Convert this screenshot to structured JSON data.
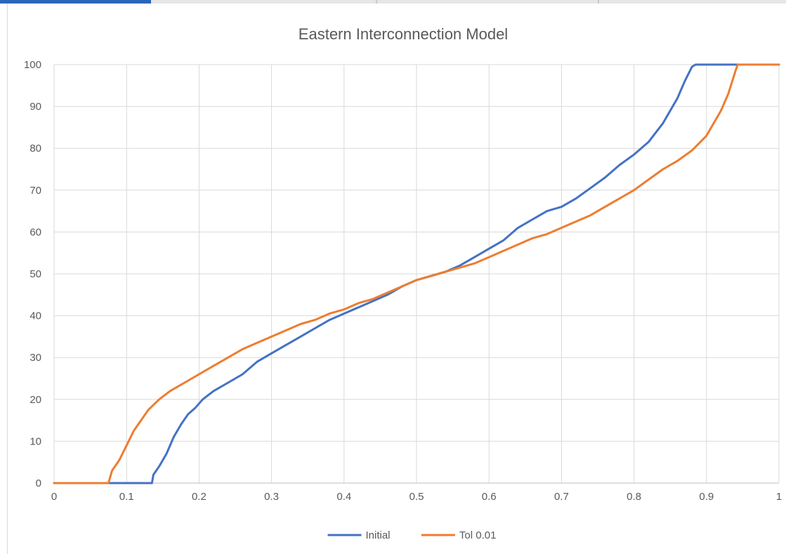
{
  "chart_data": {
    "type": "line",
    "title": "Eastern Interconnection Model",
    "xlabel": "",
    "ylabel": "",
    "xlim": [
      0,
      1
    ],
    "ylim": [
      0,
      100
    ],
    "x_ticks": [
      0,
      0.1,
      0.2,
      0.3,
      0.4,
      0.5,
      0.6,
      0.7,
      0.8,
      0.9,
      1
    ],
    "x_tick_labels": [
      "0",
      "0.1",
      "0.2",
      "0.3",
      "0.4",
      "0.5",
      "0.6",
      "0.7",
      "0.8",
      "0.9",
      "1"
    ],
    "y_ticks": [
      0,
      10,
      20,
      30,
      40,
      50,
      60,
      70,
      80,
      90,
      100
    ],
    "y_tick_labels": [
      "0",
      "10",
      "20",
      "30",
      "40",
      "50",
      "60",
      "70",
      "80",
      "90",
      "100"
    ],
    "grid": true,
    "legend_position": "bottom",
    "series": [
      {
        "name": "Initial",
        "color": "#4472c4",
        "points": [
          [
            0,
            0
          ],
          [
            0.135,
            0
          ],
          [
            0.137,
            2
          ],
          [
            0.145,
            4
          ],
          [
            0.155,
            7
          ],
          [
            0.165,
            11
          ],
          [
            0.175,
            14
          ],
          [
            0.185,
            16.5
          ],
          [
            0.195,
            18
          ],
          [
            0.205,
            20
          ],
          [
            0.22,
            22
          ],
          [
            0.24,
            24
          ],
          [
            0.26,
            26
          ],
          [
            0.28,
            29
          ],
          [
            0.3,
            31
          ],
          [
            0.32,
            33
          ],
          [
            0.34,
            35
          ],
          [
            0.36,
            37
          ],
          [
            0.38,
            39
          ],
          [
            0.4,
            40.5
          ],
          [
            0.42,
            42
          ],
          [
            0.44,
            43.5
          ],
          [
            0.46,
            45
          ],
          [
            0.48,
            47
          ],
          [
            0.5,
            48.5
          ],
          [
            0.52,
            49.5
          ],
          [
            0.54,
            50.5
          ],
          [
            0.56,
            52
          ],
          [
            0.58,
            54
          ],
          [
            0.6,
            56
          ],
          [
            0.62,
            58
          ],
          [
            0.64,
            61
          ],
          [
            0.66,
            63
          ],
          [
            0.68,
            65
          ],
          [
            0.7,
            66
          ],
          [
            0.72,
            68
          ],
          [
            0.74,
            70.5
          ],
          [
            0.76,
            73
          ],
          [
            0.78,
            76
          ],
          [
            0.8,
            78.5
          ],
          [
            0.82,
            81.5
          ],
          [
            0.84,
            86
          ],
          [
            0.86,
            92
          ],
          [
            0.87,
            96
          ],
          [
            0.88,
            99.5
          ],
          [
            0.885,
            100
          ],
          [
            1,
            100
          ]
        ]
      },
      {
        "name": "Tol 0.01",
        "color": "#ed7d31",
        "points": [
          [
            0,
            0
          ],
          [
            0.075,
            0
          ],
          [
            0.08,
            3
          ],
          [
            0.09,
            5.5
          ],
          [
            0.1,
            9
          ],
          [
            0.11,
            12.5
          ],
          [
            0.12,
            15
          ],
          [
            0.13,
            17.5
          ],
          [
            0.145,
            20
          ],
          [
            0.16,
            22
          ],
          [
            0.18,
            24
          ],
          [
            0.2,
            26
          ],
          [
            0.22,
            28
          ],
          [
            0.24,
            30
          ],
          [
            0.26,
            32
          ],
          [
            0.28,
            33.5
          ],
          [
            0.3,
            35
          ],
          [
            0.32,
            36.5
          ],
          [
            0.34,
            38
          ],
          [
            0.36,
            39
          ],
          [
            0.38,
            40.5
          ],
          [
            0.4,
            41.5
          ],
          [
            0.42,
            43
          ],
          [
            0.44,
            44
          ],
          [
            0.46,
            45.5
          ],
          [
            0.48,
            47
          ],
          [
            0.5,
            48.5
          ],
          [
            0.52,
            49.5
          ],
          [
            0.54,
            50.5
          ],
          [
            0.56,
            51.5
          ],
          [
            0.58,
            52.5
          ],
          [
            0.6,
            54
          ],
          [
            0.62,
            55.5
          ],
          [
            0.64,
            57
          ],
          [
            0.66,
            58.5
          ],
          [
            0.68,
            59.5
          ],
          [
            0.7,
            61
          ],
          [
            0.72,
            62.5
          ],
          [
            0.74,
            64
          ],
          [
            0.76,
            66
          ],
          [
            0.78,
            68
          ],
          [
            0.8,
            70
          ],
          [
            0.82,
            72.5
          ],
          [
            0.84,
            75
          ],
          [
            0.86,
            77
          ],
          [
            0.88,
            79.5
          ],
          [
            0.9,
            83
          ],
          [
            0.91,
            86
          ],
          [
            0.92,
            89
          ],
          [
            0.93,
            93
          ],
          [
            0.94,
            98.5
          ],
          [
            0.943,
            100
          ],
          [
            1,
            100
          ]
        ]
      }
    ]
  }
}
